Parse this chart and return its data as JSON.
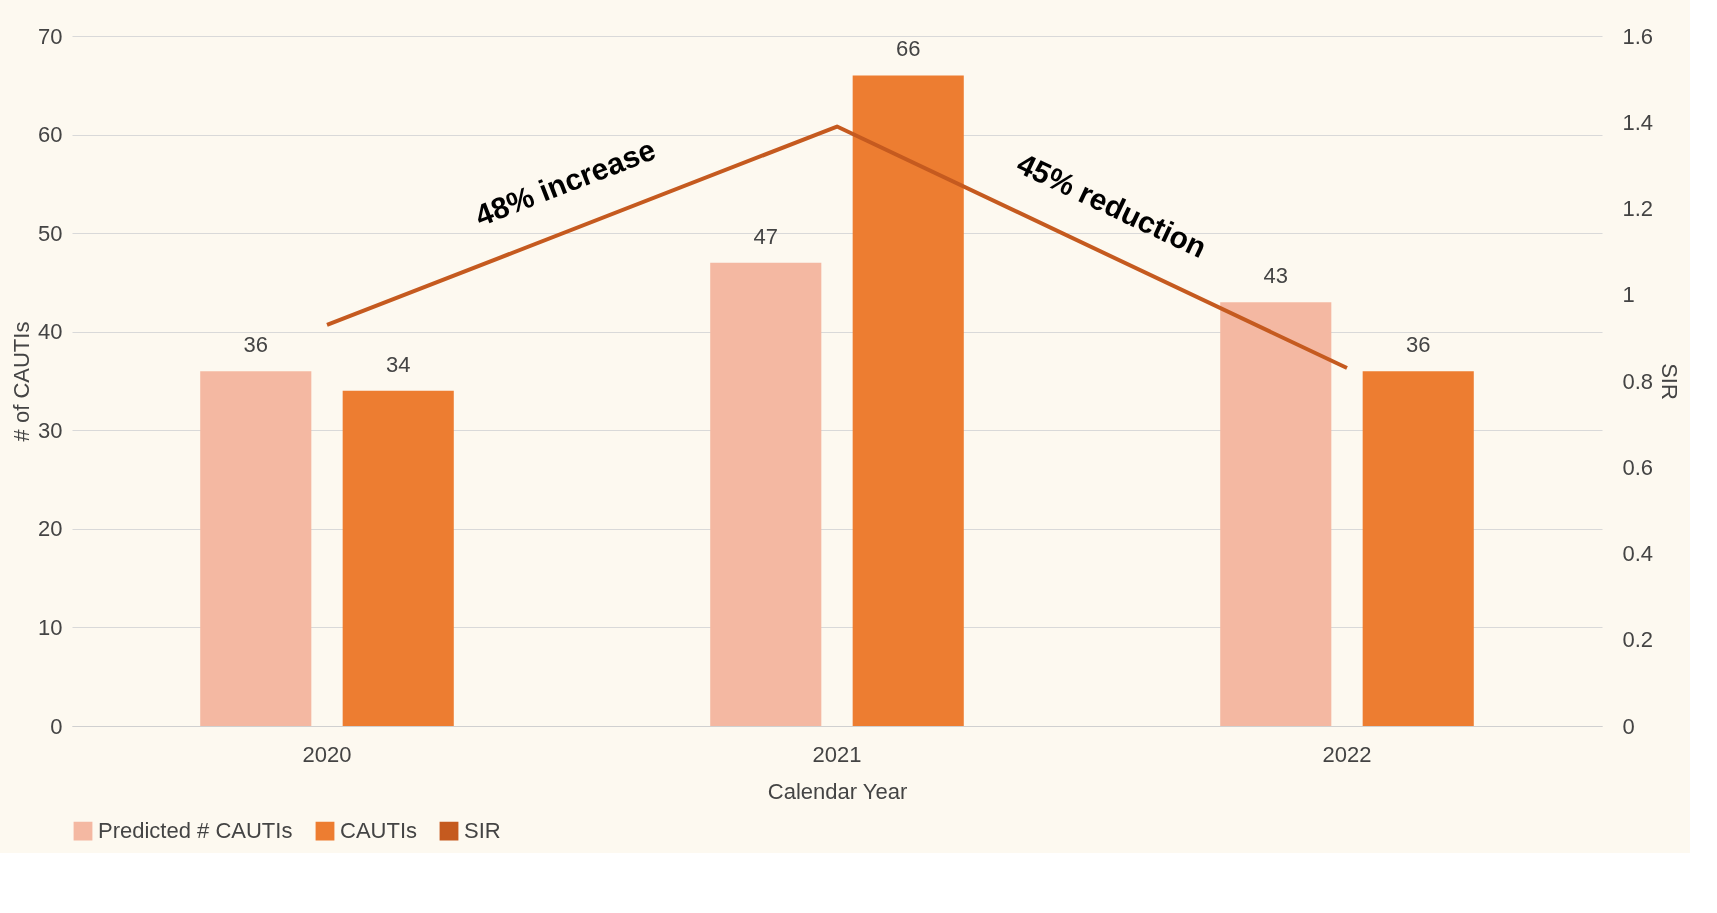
{
  "chart_data": {
    "type": "bar",
    "xlabel": "Calendar Year",
    "ylabel": "# of CAUTIs",
    "y2label": "SIR",
    "categories": [
      "2020",
      "2021",
      "2022"
    ],
    "series": [
      {
        "name": "Predicted # CAUTIs",
        "color": "#f4b8a2",
        "values": [
          36,
          47,
          43
        ],
        "value_labels": [
          "36",
          "47",
          "43"
        ]
      },
      {
        "name": "CAUTIs",
        "color": "#ed7d31",
        "values": [
          34,
          66,
          36
        ],
        "value_labels": [
          "34",
          "66",
          "36"
        ]
      },
      {
        "name": "SIR",
        "type": "line",
        "axis": "y2",
        "color": "#c55a1f",
        "values": [
          0.93,
          1.39,
          0.83
        ]
      }
    ],
    "ylim": [
      0,
      70
    ],
    "yticks": [
      0,
      10,
      20,
      30,
      40,
      50,
      60,
      70
    ],
    "y2lim": [
      0,
      1.6
    ],
    "y2ticks": [
      0,
      0.2,
      0.4,
      0.6,
      0.8,
      1,
      1.2,
      1.4,
      1.6
    ],
    "grid": "y",
    "legend": "bottom",
    "annotations": [
      "48% increase",
      "45% reduction"
    ]
  }
}
